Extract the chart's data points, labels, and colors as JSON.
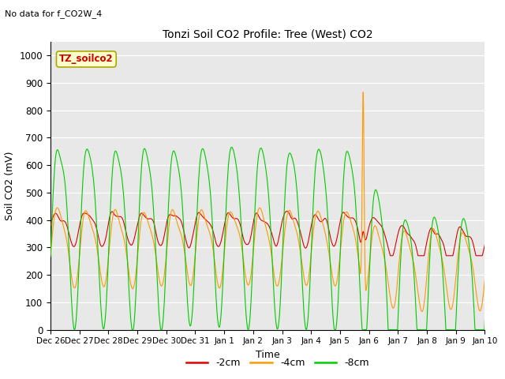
{
  "title": "Tonzi Soil CO2 Profile: Tree (West) CO2",
  "no_data_text": "No data for f_CO2W_4",
  "ylabel": "Soil CO2 (mV)",
  "xlabel": "Time",
  "ylim": [
    0,
    1050
  ],
  "xlim_days": [
    0,
    15
  ],
  "legend_label": "TZ_soilco2",
  "series_labels": [
    "-2cm",
    "-4cm",
    "-8cm"
  ],
  "series_colors": [
    "#dd0000",
    "#ff9900",
    "#00cc00"
  ],
  "tick_labels": [
    "Dec 26",
    "Dec 27",
    "Dec 28",
    "Dec 29",
    "Dec 30",
    "Dec 31",
    "Jan 1",
    "Jan 2",
    "Jan 3",
    "Jan 4",
    "Jan 5",
    "Jan 6",
    "Jan 7",
    "Jan 8",
    "Jan 9",
    "Jan 10"
  ],
  "tick_positions": [
    0,
    1,
    2,
    3,
    4,
    5,
    6,
    7,
    8,
    9,
    10,
    11,
    12,
    13,
    14,
    15
  ],
  "plot_bg_color": "#e8e8e8",
  "fig_bg_color": "#ffffff",
  "linewidth": 0.8,
  "legend_box_color": "#ffffcc",
  "legend_box_edge": "#aaa800"
}
